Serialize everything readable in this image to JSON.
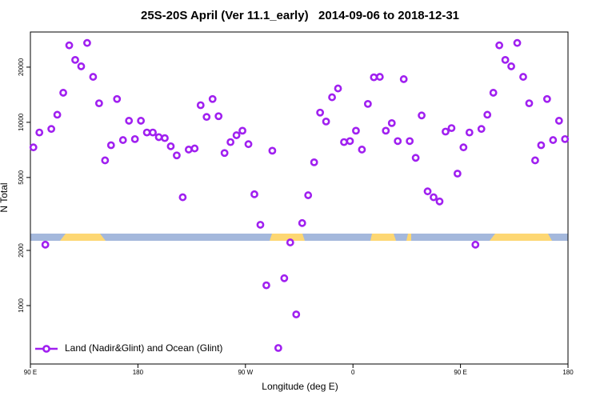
{
  "chart_data": {
    "type": "scatter",
    "title": "25S-20S April (Ver 11.1_early)   2014-09-06 to 2018-12-31",
    "x_label": "Longitude (deg E)",
    "y_label": "N Total",
    "x": [
      92.5,
      97.5,
      102.5,
      107.5,
      112.5,
      117.5,
      122.5,
      127.5,
      132.5,
      137.5,
      142.5,
      147.5,
      152.5,
      157.5,
      162.5,
      167.5,
      172.5,
      177.5,
      182.5,
      187.5,
      192.5,
      197.5,
      202.5,
      207.5,
      212.5,
      217.5,
      222.5,
      227.5,
      232.5,
      237.5,
      242.5,
      247.5,
      252.5,
      257.5,
      262.5,
      267.5,
      272.5,
      277.5,
      282.5,
      287.5,
      292.5,
      297.5,
      302.5,
      307.5,
      312.5,
      317.5,
      322.5,
      327.5,
      332.5,
      337.5,
      342.5,
      347.5,
      352.5,
      357.5,
      362.5,
      367.5,
      372.5,
      377.5,
      382.5,
      387.5,
      392.5,
      397.5,
      402.5,
      407.5,
      412.5,
      417.5,
      422.5,
      427.5,
      432.5,
      437.5,
      442.5,
      447.5,
      452.5,
      457.5,
      462.5,
      467.5,
      472.5,
      477.5,
      482.5,
      487.5,
      492.5,
      497.5,
      502.5,
      507.5,
      512.5,
      517.5,
      522.5,
      527.5,
      532.5,
      537.5
    ],
    "series": [
      {
        "name": "Land (Nadir&Glint) and Ocean (Glint)",
        "color": "#a020f0",
        "values": [
          7300,
          8800,
          2150,
          9200,
          11000,
          14500,
          26300,
          21900,
          20200,
          27100,
          17700,
          12700,
          6200,
          7500,
          13400,
          8000,
          10200,
          8100,
          10200,
          8800,
          8800,
          8300,
          8200,
          7400,
          6600,
          3900,
          7100,
          7200,
          12400,
          10700,
          13400,
          10800,
          6800,
          7800,
          8500,
          9000,
          7600,
          4050,
          2760,
          1290,
          7000,
          587,
          1410,
          2210,
          895,
          2820,
          4000,
          6050,
          11300,
          10100,
          13700,
          15300,
          7800,
          7900,
          9000,
          7100,
          12600,
          17600,
          17700,
          9000,
          9900,
          7900,
          17200,
          7900,
          6400,
          10900,
          4200,
          3900,
          3700,
          8900,
          9300,
          5250,
          7300,
          8800,
          2150,
          9200,
          11000,
          14500,
          26300,
          21900,
          20200,
          27100,
          17700,
          12700,
          6200,
          7500,
          13400,
          8000,
          10200,
          8100
        ]
      }
    ],
    "xlim": [
      90,
      540
    ],
    "xticks": [
      {
        "value": 90,
        "label": "90 E"
      },
      {
        "value": 180,
        "label": "180"
      },
      {
        "value": 270,
        "label": "90 W"
      },
      {
        "value": 360,
        "label": "0"
      },
      {
        "value": 450,
        "label": "90 E"
      },
      {
        "value": 540,
        "label": "180"
      }
    ],
    "ylim": [
      480,
      31100
    ],
    "yticks": [
      1000,
      2000,
      5000,
      10000,
      20000
    ],
    "y_scale": "log",
    "legend": "bottom-left"
  }
}
